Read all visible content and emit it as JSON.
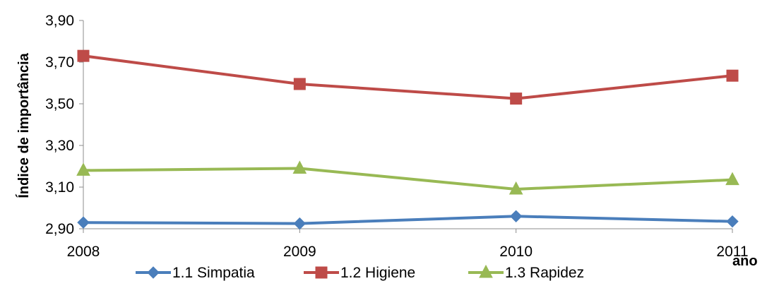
{
  "chart_data": {
    "type": "line",
    "x": [
      "2008",
      "2009",
      "2010",
      "2011"
    ],
    "series": [
      {
        "name": "1.1 Simpatia",
        "values": [
          2.93,
          2.925,
          2.96,
          2.935
        ],
        "color": "#4a7ebb",
        "marker": "diamond"
      },
      {
        "name": "1.2 Higiene",
        "values": [
          3.73,
          3.595,
          3.525,
          3.635
        ],
        "color": "#be4b48",
        "marker": "square"
      },
      {
        "name": "1.3 Rapidez",
        "values": [
          3.18,
          3.19,
          3.09,
          3.135
        ],
        "color": "#98b954",
        "marker": "triangle"
      }
    ],
    "yticks": [
      "2,90",
      "3,10",
      "3,30",
      "3,50",
      "3,70",
      "3,90"
    ],
    "ylim": [
      2.9,
      3.9
    ],
    "xlabel": "ano",
    "ylabel": "Índice de importância",
    "grid": false,
    "legend": "bottom"
  }
}
